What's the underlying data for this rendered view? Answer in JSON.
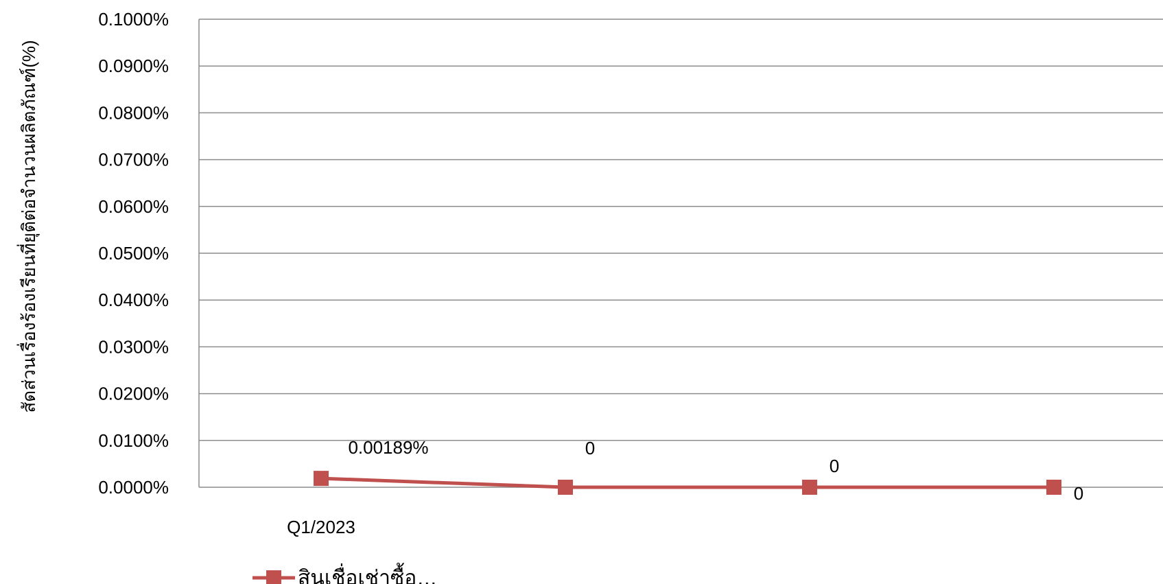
{
  "chart_data": {
    "type": "line",
    "title": "",
    "xlabel": "",
    "ylabel": "สัดส่วนเรื่องร้องเรียนที่ยุติต่อจำนวนผลิตภัณฑ์(%)",
    "ylim": [
      0,
      0.1
    ],
    "yticks": [
      0,
      0.01,
      0.02,
      0.03,
      0.04,
      0.05,
      0.06,
      0.07,
      0.08,
      0.09,
      0.1
    ],
    "ytick_labels": [
      "0.0000%",
      "0.0100%",
      "0.0200%",
      "0.0300%",
      "0.0400%",
      "0.0500%",
      "0.0600%",
      "0.0700%",
      "0.0800%",
      "0.0900%",
      "0.1000%"
    ],
    "categories": [
      "Q1/2023",
      "",
      "",
      ""
    ],
    "grid": true,
    "legend_position": "bottom-left",
    "series": [
      {
        "name": "สินเชื่อเช่าซื้อ…",
        "color": "#C0504D",
        "marker": "square",
        "values": [
          0.00189,
          0,
          0,
          0
        ],
        "data_labels": [
          "0.00189%",
          "0",
          "0",
          "0"
        ]
      }
    ]
  }
}
